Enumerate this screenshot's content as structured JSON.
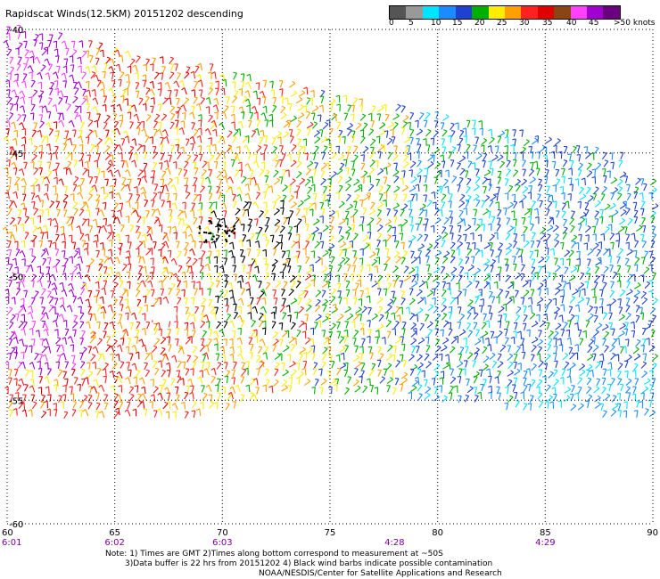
{
  "title": "Rapidscat Winds(12.5KM) 20151202 descending",
  "legend": {
    "colors": [
      "#555555",
      "#999999",
      "#00e5ff",
      "#1a8cff",
      "#2040d0",
      "#00b000",
      "#ffee00",
      "#ffa000",
      "#ff2020",
      "#e00000",
      "#8b4513",
      "#ff40ff",
      "#a000d0",
      "#6a0080"
    ],
    "labels": [
      "0",
      "5",
      "10",
      "15",
      "20",
      "25",
      "30",
      "35",
      "40",
      "45",
      ">50 knots"
    ]
  },
  "axes": {
    "lon_ticks": [
      "60",
      "65",
      "70",
      "75",
      "80",
      "85",
      "90"
    ],
    "lat_ticks": [
      "-40",
      "-45",
      "-50",
      "-55",
      "-60"
    ],
    "time_ticks": [
      "6:01",
      "6:02",
      "6:03",
      "4:28",
      "4:29"
    ]
  },
  "notes": {
    "line1": "Note: 1) Times are GMT 2)Times along bottom correspond to measurement at ~50S",
    "line2": "3)Data buffer is 22 hrs from 20151202 4) Black wind barbs indicate possible contamination",
    "line3": "NOAA/NESDIS/Center for Satellite Applications and Research"
  }
}
